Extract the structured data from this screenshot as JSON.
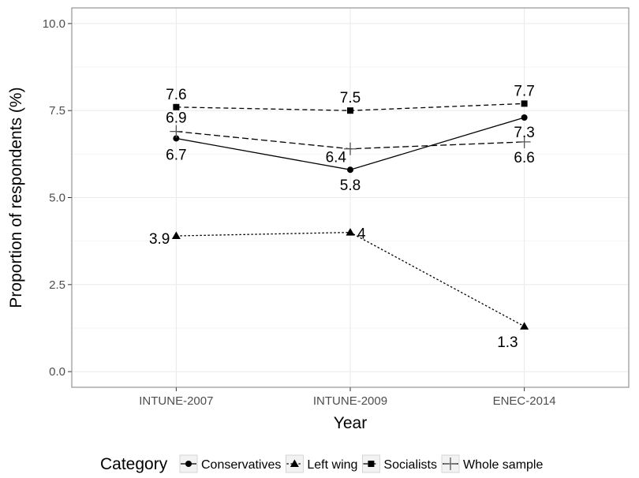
{
  "chart_data": {
    "type": "line",
    "title": "",
    "xlabel": "Year",
    "ylabel": "Proportion of respondents (%)",
    "categories": [
      "INTUNE-2007",
      "INTUNE-2009",
      "ENEC-2014"
    ],
    "ylim": [
      0,
      10
    ],
    "yticks": [
      "0.0",
      "2.5",
      "5.0",
      "7.5",
      "10.0"
    ],
    "grid": true,
    "legend": {
      "title": "Category",
      "position": "bottom"
    },
    "series": [
      {
        "name": "Conservatives",
        "values": [
          6.7,
          5.8,
          7.3
        ],
        "labels": [
          "6.7",
          "5.8",
          "7.3"
        ],
        "marker": "circle",
        "dash": "solid"
      },
      {
        "name": "Left wing",
        "values": [
          3.9,
          4.0,
          1.3
        ],
        "labels": [
          "3.9",
          "4",
          "1.3"
        ],
        "marker": "triangle",
        "dash": "dotted"
      },
      {
        "name": "Socialists",
        "values": [
          7.6,
          7.5,
          7.7
        ],
        "labels": [
          "7.6",
          "7.5",
          "7.7"
        ],
        "marker": "square",
        "dash": "dashed"
      },
      {
        "name": "Whole sample",
        "values": [
          6.9,
          6.4,
          6.6
        ],
        "labels": [
          "6.9",
          "6.4",
          "6.6"
        ],
        "marker": "plus",
        "dash": "longdash"
      }
    ]
  }
}
